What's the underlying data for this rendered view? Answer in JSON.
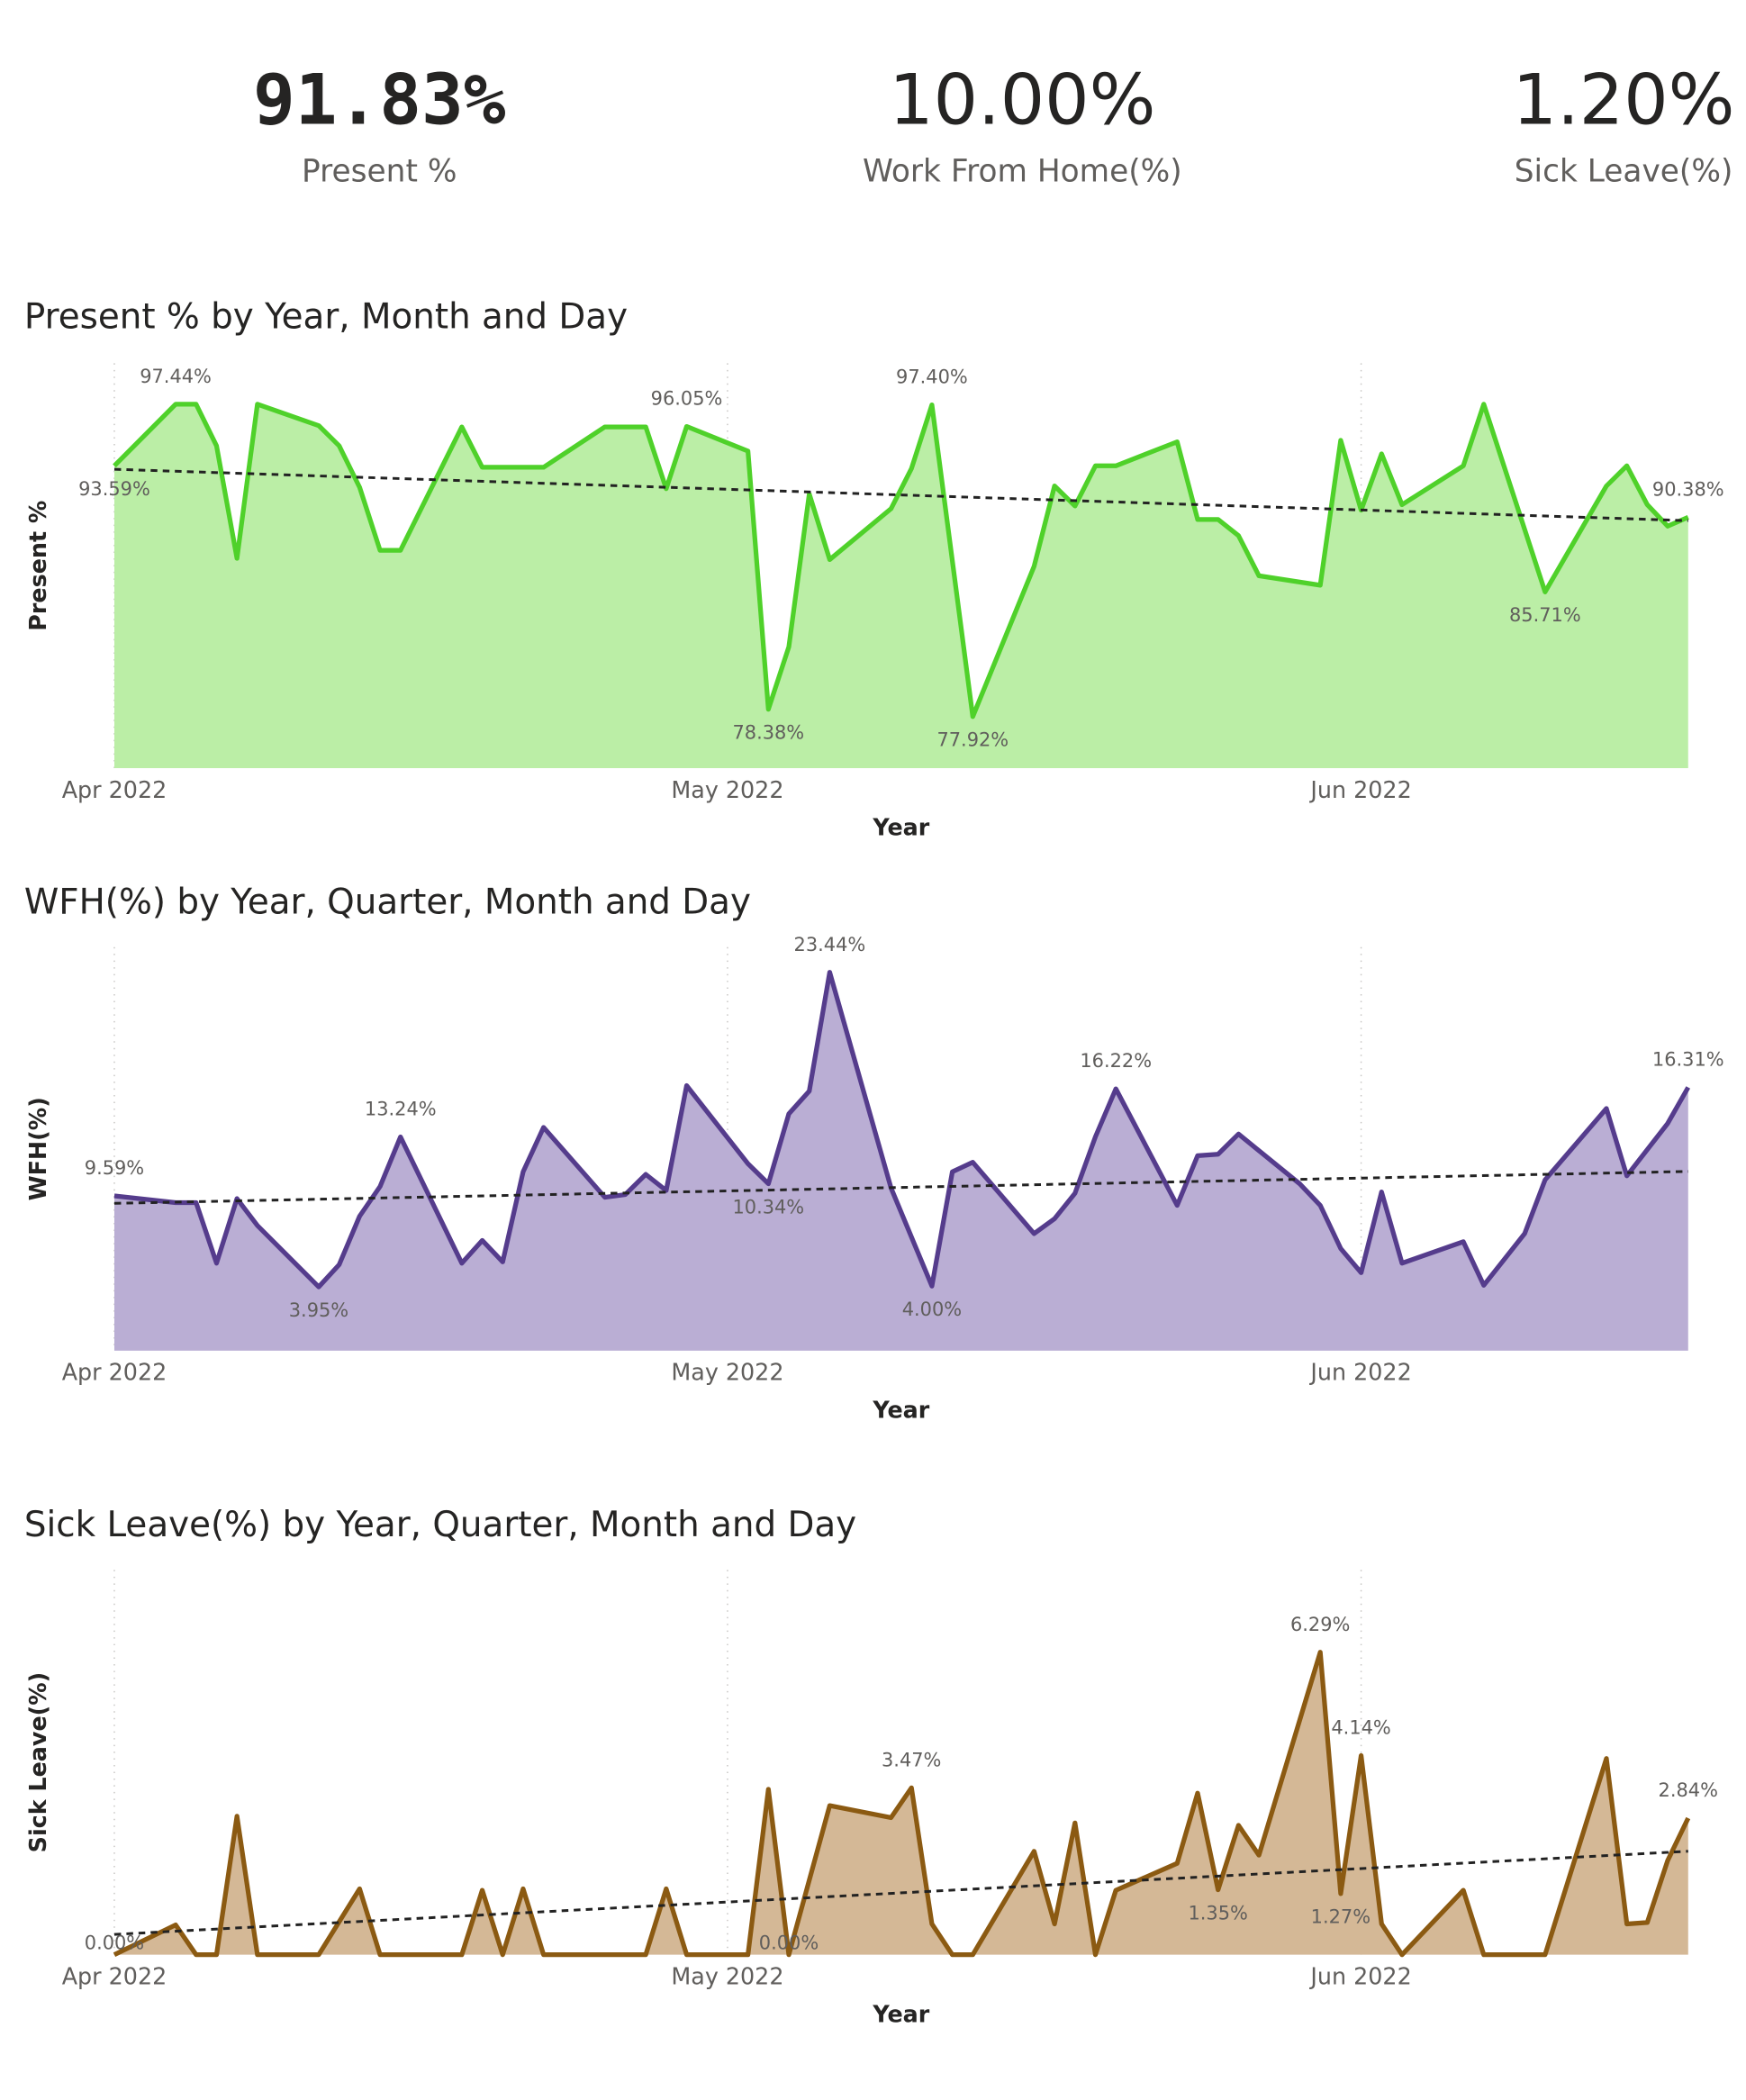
{
  "cards": [
    {
      "value": "91.83%",
      "label": "Present %"
    },
    {
      "value": "10.00%",
      "label": "Work From Home(%)"
    },
    {
      "value": "1.20%",
      "label": "Sick Leave(%)"
    }
  ],
  "chart_data": [
    {
      "type": "area",
      "title": "Present % by Year, Month and Day",
      "x_label": "Year",
      "y_label": "Present %",
      "color": "#4fd12a",
      "fill": "#bbeea6",
      "trendline": true,
      "xlim": [
        0,
        77
      ],
      "xticks": [
        {
          "value": 0,
          "label": "Apr 2022"
        },
        {
          "value": 30,
          "label": "May 2022"
        },
        {
          "value": 61,
          "label": "Jun 2022"
        }
      ],
      "ylim": [
        74.7,
        100
      ],
      "x": [
        0,
        3,
        4,
        5,
        6,
        7,
        10,
        11,
        12,
        13,
        14,
        17,
        18,
        21,
        24,
        26,
        27,
        28,
        31,
        32,
        33,
        34,
        35,
        38,
        39,
        40,
        42,
        45,
        46,
        47,
        48,
        49,
        52,
        53,
        54,
        55,
        56,
        59,
        60,
        61,
        62,
        63,
        66,
        67,
        70,
        73,
        74,
        75,
        76,
        77
      ],
      "values": [
        93.59,
        97.44,
        97.44,
        94.84,
        87.81,
        97.44,
        96.1,
        94.84,
        92.25,
        88.31,
        88.31,
        96.02,
        93.5,
        93.5,
        96.02,
        96.02,
        92.16,
        96.05,
        94.51,
        78.38,
        82.28,
        91.83,
        87.73,
        90.91,
        93.42,
        97.4,
        77.92,
        87.31,
        92.33,
        91.08,
        93.59,
        93.59,
        95.09,
        90.24,
        90.24,
        89.23,
        86.72,
        86.13,
        95.18,
        90.82,
        94.34,
        91.16,
        93.59,
        97.44,
        85.71,
        92.33,
        93.59,
        91.16,
        89.82,
        90.38
      ],
      "value_labels": [
        "93.59%",
        "97.44%",
        null,
        null,
        null,
        null,
        null,
        null,
        null,
        null,
        null,
        null,
        null,
        null,
        null,
        null,
        null,
        "96.05%",
        null,
        "78.38%",
        null,
        null,
        null,
        null,
        null,
        "97.40%",
        "77.92%",
        null,
        null,
        null,
        null,
        null,
        null,
        null,
        null,
        null,
        null,
        null,
        null,
        null,
        null,
        null,
        null,
        null,
        "85.71%",
        null,
        null,
        null,
        null,
        "90.38%"
      ]
    },
    {
      "type": "area",
      "title": "WFH(%) by Year, Quarter, Month and Day",
      "x_label": "Year",
      "y_label": "WFH(%)",
      "color": "#553c8c",
      "fill": "#baaed4",
      "trendline": true,
      "xlim": [
        0,
        77
      ],
      "xticks": [
        {
          "value": 0,
          "label": "Apr 2022"
        },
        {
          "value": 30,
          "label": "May 2022"
        },
        {
          "value": 61,
          "label": "Jun 2022"
        }
      ],
      "ylim": [
        0,
        25
      ],
      "x": [
        0,
        3,
        4,
        5,
        6,
        7,
        10,
        11,
        12,
        13,
        14,
        17,
        18,
        19,
        20,
        21,
        24,
        25,
        26,
        27,
        28,
        31,
        32,
        33,
        34,
        35,
        38,
        40,
        41,
        42,
        45,
        46,
        47,
        48,
        49,
        52,
        53,
        54,
        55,
        58,
        59,
        60,
        61,
        62,
        63,
        66,
        67,
        69,
        70,
        73,
        74,
        76,
        77
      ],
      "values": [
        9.59,
        9.17,
        9.17,
        5.42,
        9.42,
        7.75,
        3.95,
        5.33,
        8.33,
        10.17,
        13.24,
        5.42,
        6.83,
        5.5,
        11.08,
        13.83,
        9.5,
        9.67,
        10.92,
        9.92,
        16.42,
        11.58,
        10.34,
        14.67,
        16.08,
        23.44,
        10.08,
        4.0,
        11.08,
        11.67,
        7.25,
        8.17,
        9.75,
        13.25,
        16.22,
        9.0,
        12.08,
        12.17,
        13.42,
        10.33,
        9.0,
        6.33,
        4.83,
        9.83,
        5.42,
        6.75,
        4.05,
        7.25,
        10.58,
        15.0,
        10.83,
        14.08,
        16.31
      ],
      "value_labels": [
        "9.59%",
        null,
        null,
        null,
        null,
        null,
        "3.95%",
        null,
        null,
        null,
        "13.24%",
        null,
        null,
        null,
        null,
        null,
        null,
        null,
        null,
        null,
        null,
        null,
        "10.34%",
        null,
        null,
        "23.44%",
        null,
        "4.00%",
        null,
        null,
        null,
        null,
        null,
        null,
        "16.22%",
        null,
        null,
        null,
        null,
        null,
        null,
        null,
        null,
        null,
        null,
        null,
        null,
        null,
        null,
        null,
        null,
        null,
        "16.31%"
      ]
    },
    {
      "type": "area",
      "title": "Sick Leave(%) by Year, Quarter, Month and Day",
      "x_label": "Year",
      "y_label": "Sick Leave(%)",
      "color": "#8b5a12",
      "fill": "#d4b896",
      "trendline": true,
      "xlim": [
        0,
        77
      ],
      "xticks": [
        {
          "value": 0,
          "label": "Apr 2022"
        },
        {
          "value": 30,
          "label": "May 2022"
        },
        {
          "value": 61,
          "label": "Jun 2022"
        }
      ],
      "ylim": [
        0,
        8
      ],
      "x": [
        0,
        3,
        4,
        5,
        6,
        7,
        10,
        12,
        13,
        17,
        18,
        19,
        20,
        21,
        26,
        27,
        28,
        31,
        32,
        33,
        35,
        38,
        39,
        40,
        41,
        42,
        45,
        46,
        47,
        48,
        49,
        52,
        53,
        54,
        55,
        56,
        59,
        60,
        61,
        62,
        63,
        66,
        67,
        70,
        73,
        74,
        75,
        76,
        77
      ],
      "values": [
        0,
        0.62,
        0,
        0,
        2.88,
        0,
        0,
        1.37,
        0,
        0,
        1.34,
        0,
        1.37,
        0,
        0,
        1.37,
        0,
        0,
        3.44,
        0,
        3.1,
        2.85,
        3.47,
        0.64,
        0,
        0,
        2.15,
        0.64,
        2.74,
        0,
        1.34,
        1.9,
        3.36,
        1.35,
        2.69,
        2.07,
        6.29,
        1.27,
        4.14,
        0.64,
        0,
        1.34,
        0,
        0,
        4.08,
        0.64,
        0.67,
        1.96,
        2.84
      ],
      "value_labels": [
        "0.00%",
        null,
        null,
        null,
        null,
        null,
        null,
        null,
        null,
        null,
        null,
        null,
        null,
        null,
        null,
        null,
        null,
        null,
        null,
        "0.00%",
        null,
        null,
        "3.47%",
        null,
        null,
        null,
        null,
        null,
        null,
        null,
        null,
        null,
        null,
        "1.35%",
        null,
        null,
        "6.29%",
        "1.27%",
        "4.14%",
        null,
        null,
        null,
        null,
        null,
        null,
        null,
        null,
        null,
        "2.84%"
      ]
    }
  ]
}
